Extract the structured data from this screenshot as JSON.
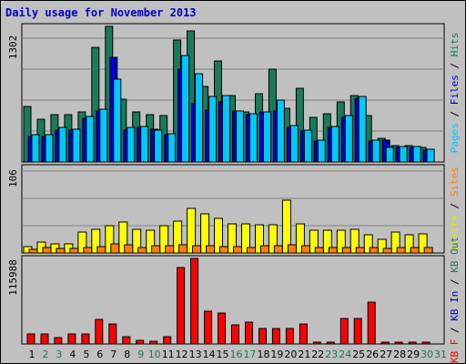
{
  "title": "Daily usage for November 2013",
  "chart_data": {
    "type": "bar",
    "title": "Daily usage for November 2013",
    "categories": [
      "1",
      "2",
      "3",
      "4",
      "5",
      "6",
      "7",
      "8",
      "9",
      "10",
      "11",
      "12",
      "13",
      "14",
      "15",
      "16",
      "17",
      "18",
      "19",
      "20",
      "21",
      "22",
      "23",
      "24",
      "25",
      "26",
      "27",
      "28",
      "29",
      "30",
      "31"
    ],
    "weekend_days": [
      "2",
      "3",
      "9",
      "10",
      "16",
      "17",
      "23",
      "24",
      "30",
      "31"
    ],
    "panels": [
      {
        "id": "top",
        "max_label": "1302",
        "ymax": 1302,
        "right_label": [
          {
            "text": "Pages",
            "color": "#00c8ff"
          },
          {
            "text": " / ",
            "color": "#000000"
          },
          {
            "text": "Files",
            "color": "#0000c8"
          },
          {
            "text": " / ",
            "color": "#000000"
          },
          {
            "text": "Hits",
            "color": "#1a7a5a"
          }
        ],
        "series": [
          {
            "name": "Hits",
            "color": "#1a7a5a",
            "values": [
              540,
              410,
              460,
              460,
              480,
              1110,
              1310,
              610,
              480,
              460,
              450,
              1180,
              1270,
              730,
              980,
              640,
              480,
              660,
              900,
              520,
              710,
              430,
              470,
              580,
              640,
              450,
              230,
              160,
              160,
              140,
              null
            ]
          },
          {
            "name": "Files",
            "color": "#0000c8",
            "values": [
              250,
              250,
              310,
              310,
              420,
              490,
              1010,
              310,
              330,
              320,
              260,
              900,
              560,
              500,
              580,
              490,
              460,
              480,
              490,
              330,
              300,
              200,
              330,
              430,
              620,
              200,
              210,
              140,
              140,
              110,
              null
            ]
          },
          {
            "name": "Pages",
            "color": "#00c8ff",
            "values": [
              260,
              260,
              330,
              320,
              440,
              510,
              800,
              330,
              340,
              310,
              270,
              1030,
              850,
              630,
              640,
              490,
              470,
              480,
              600,
              350,
              310,
              210,
              340,
              450,
              630,
              210,
              140,
              150,
              150,
              120,
              null
            ]
          }
        ]
      },
      {
        "id": "middle",
        "max_label": "106",
        "ymax": 106,
        "right_label": [
          {
            "text": "Visits",
            "color": "#e8e800"
          },
          {
            "text": " / ",
            "color": "#000000"
          },
          {
            "text": "Sites",
            "color": "#ff8000"
          }
        ],
        "series": [
          {
            "name": "Visits",
            "color": "#ffff00",
            "values": [
              8,
              14,
              11,
              11,
              26,
              30,
              34,
              39,
              30,
              28,
              34,
              40,
              56,
              49,
              43,
              37,
              37,
              35,
              35,
              66,
              36,
              28,
              28,
              28,
              30,
              23,
              17,
              26,
              23,
              24,
              null
            ]
          },
          {
            "name": "Sites",
            "color": "#ff8000",
            "values": [
              5,
              7,
              6,
              6,
              7,
              8,
              11,
              10,
              7,
              9,
              9,
              10,
              9,
              9,
              8,
              8,
              7,
              9,
              9,
              10,
              9,
              7,
              7,
              7,
              7,
              7,
              6,
              7,
              7,
              7,
              null
            ]
          }
        ]
      },
      {
        "id": "bottom",
        "max_label": "115988",
        "ymax": 115988,
        "right_label": [
          {
            "text": "KB F",
            "color": "#ff0000"
          },
          {
            "text": " / ",
            "color": "#000000"
          },
          {
            "text": "KB In",
            "color": "#0000c8"
          },
          {
            "text": " / ",
            "color": "#000000"
          },
          {
            "text": "KB Out",
            "color": "#1a7a5a"
          }
        ],
        "series": [
          {
            "name": "KB F",
            "color": "#ff0000",
            "values": [
              14000,
              14000,
              9000,
              14000,
              14000,
              34000,
              27000,
              10000,
              5000,
              4000,
              10000,
              105000,
              117000,
              45000,
              43000,
              26000,
              30000,
              21000,
              21000,
              21000,
              28000,
              2000,
              2000,
              35000,
              35000,
              57000,
              2000,
              2000,
              2000,
              2000,
              null
            ]
          }
        ]
      }
    ]
  }
}
